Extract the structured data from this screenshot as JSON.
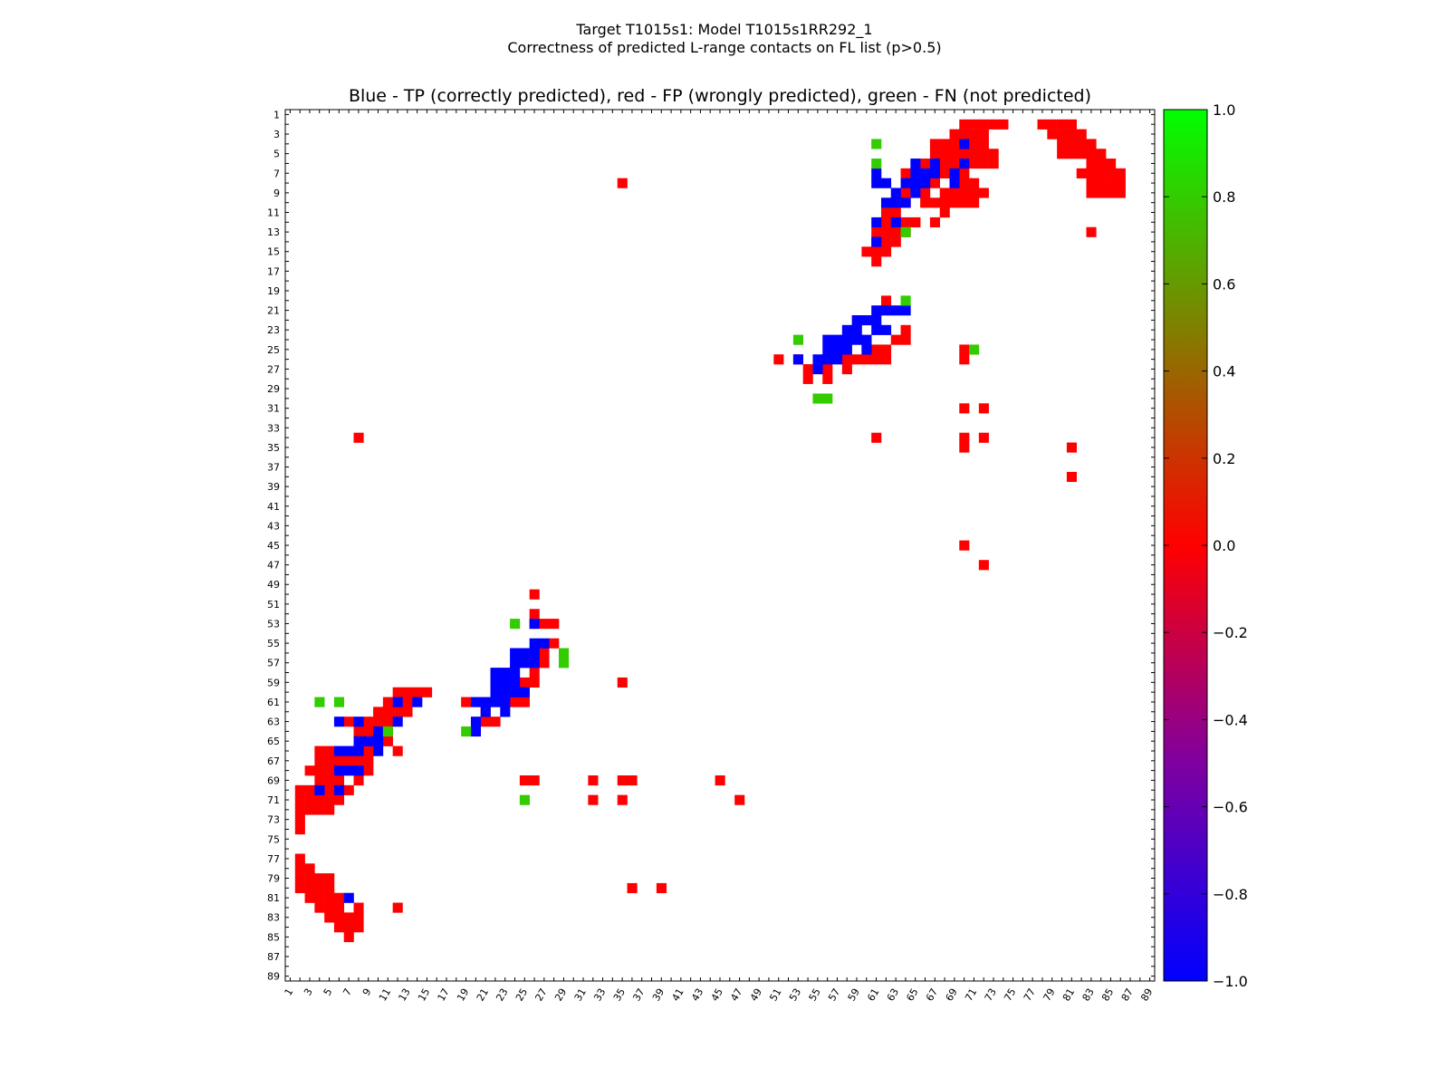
{
  "figure": {
    "suptitle_line1": "Target T1015s1: Model T1015s1RR292_1",
    "suptitle_line2": "Correctness of predicted L-range contacts on FL list (p>0.5)"
  },
  "colors": {
    "tp": "#0000ff",
    "fp": "#ff0000",
    "fn": "#33cc00",
    "colormap_stops": [
      "#0000ff",
      "#7f00a0",
      "#ff0000",
      "#808000",
      "#00ff00"
    ]
  },
  "chart_data": {
    "type": "heatmap",
    "title": "Blue - TP (correctly predicted), red - FP (wrongly predicted), green - FN (not predicted)",
    "xlabel": "",
    "ylabel": "",
    "xlim": [
      1,
      89
    ],
    "ylim": [
      1,
      89
    ],
    "x_ticks": [
      "1",
      "3",
      "5",
      "7",
      "9",
      "11",
      "13",
      "15",
      "17",
      "19",
      "21",
      "23",
      "25",
      "27",
      "29",
      "31",
      "33",
      "35",
      "37",
      "39",
      "41",
      "43",
      "45",
      "47",
      "49",
      "51",
      "53",
      "55",
      "57",
      "59",
      "61",
      "63",
      "65",
      "67",
      "69",
      "71",
      "73",
      "75",
      "77",
      "79",
      "81",
      "83",
      "85",
      "87",
      "89"
    ],
    "y_ticks": [
      "1",
      "3",
      "5",
      "7",
      "9",
      "11",
      "13",
      "15",
      "17",
      "19",
      "21",
      "23",
      "25",
      "27",
      "29",
      "31",
      "33",
      "35",
      "37",
      "39",
      "41",
      "43",
      "45",
      "47",
      "49",
      "51",
      "53",
      "55",
      "57",
      "59",
      "61",
      "63",
      "65",
      "67",
      "69",
      "71",
      "73",
      "75",
      "77",
      "79",
      "81",
      "83",
      "85",
      "87",
      "89"
    ],
    "value_legend": {
      "tp": -1,
      "fp": 0,
      "fn": 1
    },
    "colorbar": {
      "min": -1.0,
      "max": 1.0,
      "ticks": [
        "1.0",
        "0.8",
        "0.6",
        "0.4",
        "0.2",
        "0.0",
        "−0.2",
        "−0.4",
        "−0.6",
        "−0.8",
        "−1.0"
      ]
    },
    "cells": {
      "tp": [
        [
          70,
          4
        ],
        [
          65,
          6
        ],
        [
          67,
          6
        ],
        [
          70,
          6
        ],
        [
          61,
          7
        ],
        [
          65,
          7
        ],
        [
          66,
          7
        ],
        [
          67,
          7
        ],
        [
          69,
          7
        ],
        [
          61,
          8
        ],
        [
          62,
          8
        ],
        [
          64,
          8
        ],
        [
          65,
          8
        ],
        [
          66,
          8
        ],
        [
          69,
          8
        ],
        [
          63,
          9
        ],
        [
          65,
          9
        ],
        [
          62,
          10
        ],
        [
          63,
          10
        ],
        [
          64,
          10
        ],
        [
          61,
          12
        ],
        [
          63,
          12
        ],
        [
          61,
          14
        ],
        [
          61,
          21
        ],
        [
          62,
          21
        ],
        [
          63,
          21
        ],
        [
          64,
          21
        ],
        [
          59,
          22
        ],
        [
          60,
          22
        ],
        [
          61,
          22
        ],
        [
          58,
          23
        ],
        [
          59,
          23
        ],
        [
          61,
          23
        ],
        [
          62,
          23
        ],
        [
          56,
          24
        ],
        [
          57,
          24
        ],
        [
          58,
          24
        ],
        [
          59,
          24
        ],
        [
          60,
          24
        ],
        [
          56,
          25
        ],
        [
          57,
          25
        ],
        [
          58,
          25
        ],
        [
          60,
          25
        ],
        [
          53,
          26
        ],
        [
          55,
          26
        ],
        [
          56,
          26
        ],
        [
          57,
          26
        ],
        [
          55,
          27
        ],
        [
          26,
          53
        ],
        [
          26,
          55
        ],
        [
          27,
          55
        ],
        [
          24,
          56
        ],
        [
          25,
          56
        ],
        [
          26,
          56
        ],
        [
          24,
          57
        ],
        [
          25,
          57
        ],
        [
          26,
          57
        ],
        [
          22,
          58
        ],
        [
          23,
          58
        ],
        [
          24,
          58
        ],
        [
          22,
          59
        ],
        [
          23,
          59
        ],
        [
          24,
          59
        ],
        [
          22,
          60
        ],
        [
          23,
          60
        ],
        [
          24,
          60
        ],
        [
          25,
          60
        ],
        [
          12,
          61
        ],
        [
          14,
          61
        ],
        [
          20,
          61
        ],
        [
          21,
          61
        ],
        [
          22,
          61
        ],
        [
          23,
          61
        ],
        [
          21,
          62
        ],
        [
          23,
          62
        ],
        [
          6,
          63
        ],
        [
          8,
          63
        ],
        [
          12,
          63
        ],
        [
          20,
          63
        ],
        [
          10,
          64
        ],
        [
          20,
          64
        ],
        [
          8,
          65
        ],
        [
          9,
          65
        ],
        [
          10,
          65
        ],
        [
          6,
          66
        ],
        [
          7,
          66
        ],
        [
          8,
          66
        ],
        [
          10,
          66
        ],
        [
          6,
          68
        ],
        [
          7,
          68
        ],
        [
          8,
          68
        ],
        [
          4,
          70
        ],
        [
          6,
          70
        ],
        [
          7,
          81
        ]
      ],
      "fp": [
        [
          70,
          2
        ],
        [
          71,
          2
        ],
        [
          72,
          2
        ],
        [
          73,
          2
        ],
        [
          74,
          2
        ],
        [
          78,
          2
        ],
        [
          79,
          2
        ],
        [
          80,
          2
        ],
        [
          81,
          2
        ],
        [
          69,
          3
        ],
        [
          70,
          3
        ],
        [
          71,
          3
        ],
        [
          72,
          3
        ],
        [
          79,
          3
        ],
        [
          80,
          3
        ],
        [
          81,
          3
        ],
        [
          82,
          3
        ],
        [
          67,
          4
        ],
        [
          68,
          4
        ],
        [
          69,
          4
        ],
        [
          71,
          4
        ],
        [
          72,
          4
        ],
        [
          80,
          4
        ],
        [
          81,
          4
        ],
        [
          82,
          4
        ],
        [
          83,
          4
        ],
        [
          67,
          5
        ],
        [
          68,
          5
        ],
        [
          69,
          5
        ],
        [
          70,
          5
        ],
        [
          71,
          5
        ],
        [
          72,
          5
        ],
        [
          73,
          5
        ],
        [
          80,
          5
        ],
        [
          81,
          5
        ],
        [
          82,
          5
        ],
        [
          83,
          5
        ],
        [
          84,
          5
        ],
        [
          66,
          6
        ],
        [
          68,
          6
        ],
        [
          69,
          6
        ],
        [
          71,
          6
        ],
        [
          72,
          6
        ],
        [
          73,
          6
        ],
        [
          83,
          6
        ],
        [
          84,
          6
        ],
        [
          85,
          6
        ],
        [
          64,
          7
        ],
        [
          68,
          7
        ],
        [
          70,
          7
        ],
        [
          82,
          7
        ],
        [
          83,
          7
        ],
        [
          84,
          7
        ],
        [
          85,
          7
        ],
        [
          86,
          7
        ],
        [
          35,
          8
        ],
        [
          67,
          8
        ],
        [
          70,
          8
        ],
        [
          71,
          8
        ],
        [
          83,
          8
        ],
        [
          84,
          8
        ],
        [
          85,
          8
        ],
        [
          86,
          8
        ],
        [
          64,
          9
        ],
        [
          66,
          9
        ],
        [
          68,
          9
        ],
        [
          69,
          9
        ],
        [
          70,
          9
        ],
        [
          71,
          9
        ],
        [
          72,
          9
        ],
        [
          83,
          9
        ],
        [
          84,
          9
        ],
        [
          85,
          9
        ],
        [
          86,
          9
        ],
        [
          63,
          10
        ],
        [
          64,
          10
        ],
        [
          66,
          10
        ],
        [
          67,
          10
        ],
        [
          68,
          10
        ],
        [
          69,
          10
        ],
        [
          70,
          10
        ],
        [
          71,
          10
        ],
        [
          62,
          11
        ],
        [
          63,
          11
        ],
        [
          68,
          11
        ],
        [
          62,
          12
        ],
        [
          63,
          12
        ],
        [
          64,
          12
        ],
        [
          65,
          12
        ],
        [
          67,
          12
        ],
        [
          61,
          13
        ],
        [
          62,
          13
        ],
        [
          63,
          13
        ],
        [
          64,
          13
        ],
        [
          83,
          13
        ],
        [
          61,
          14
        ],
        [
          62,
          14
        ],
        [
          63,
          14
        ],
        [
          60,
          15
        ],
        [
          61,
          15
        ],
        [
          62,
          15
        ],
        [
          61,
          16
        ],
        [
          62,
          20
        ],
        [
          59,
          23
        ],
        [
          64,
          23
        ],
        [
          63,
          24
        ],
        [
          64,
          24
        ],
        [
          60,
          25
        ],
        [
          61,
          25
        ],
        [
          62,
          25
        ],
        [
          70,
          25
        ],
        [
          51,
          26
        ],
        [
          53,
          26
        ],
        [
          58,
          26
        ],
        [
          59,
          26
        ],
        [
          60,
          26
        ],
        [
          61,
          26
        ],
        [
          62,
          26
        ],
        [
          70,
          26
        ],
        [
          54,
          27
        ],
        [
          56,
          27
        ],
        [
          58,
          27
        ],
        [
          54,
          28
        ],
        [
          56,
          28
        ],
        [
          70,
          31
        ],
        [
          72,
          31
        ],
        [
          61,
          34
        ],
        [
          70,
          34
        ],
        [
          72,
          34
        ],
        [
          8,
          34
        ],
        [
          70,
          35
        ],
        [
          81,
          35
        ],
        [
          81,
          38
        ],
        [
          70,
          45
        ],
        [
          72,
          47
        ],
        [
          26,
          50
        ],
        [
          26,
          52
        ],
        [
          26,
          53
        ],
        [
          27,
          53
        ],
        [
          28,
          53
        ],
        [
          28,
          55
        ],
        [
          27,
          56
        ],
        [
          27,
          57
        ],
        [
          26,
          58
        ],
        [
          26,
          59
        ],
        [
          25,
          59
        ],
        [
          35,
          59
        ],
        [
          12,
          60
        ],
        [
          13,
          60
        ],
        [
          14,
          60
        ],
        [
          15,
          60
        ],
        [
          11,
          61
        ],
        [
          13,
          61
        ],
        [
          19,
          61
        ],
        [
          23,
          61
        ],
        [
          24,
          61
        ],
        [
          25,
          61
        ],
        [
          10,
          62
        ],
        [
          11,
          62
        ],
        [
          12,
          62
        ],
        [
          13,
          62
        ],
        [
          21,
          62
        ],
        [
          7,
          63
        ],
        [
          9,
          63
        ],
        [
          10,
          63
        ],
        [
          11,
          63
        ],
        [
          21,
          63
        ],
        [
          22,
          63
        ],
        [
          8,
          64
        ],
        [
          9,
          64
        ],
        [
          11,
          64
        ],
        [
          11,
          65
        ],
        [
          4,
          66
        ],
        [
          5,
          66
        ],
        [
          9,
          66
        ],
        [
          12,
          66
        ],
        [
          4,
          67
        ],
        [
          5,
          67
        ],
        [
          6,
          67
        ],
        [
          7,
          67
        ],
        [
          8,
          67
        ],
        [
          9,
          67
        ],
        [
          3,
          68
        ],
        [
          4,
          68
        ],
        [
          5,
          68
        ],
        [
          9,
          68
        ],
        [
          4,
          69
        ],
        [
          5,
          69
        ],
        [
          6,
          69
        ],
        [
          8,
          69
        ],
        [
          25,
          69
        ],
        [
          26,
          69
        ],
        [
          32,
          69
        ],
        [
          35,
          69
        ],
        [
          36,
          69
        ],
        [
          45,
          69
        ],
        [
          2,
          70
        ],
        [
          3,
          70
        ],
        [
          5,
          70
        ],
        [
          7,
          70
        ],
        [
          2,
          71
        ],
        [
          3,
          71
        ],
        [
          4,
          71
        ],
        [
          5,
          71
        ],
        [
          6,
          71
        ],
        [
          32,
          71
        ],
        [
          35,
          71
        ],
        [
          47,
          71
        ],
        [
          2,
          72
        ],
        [
          3,
          72
        ],
        [
          4,
          72
        ],
        [
          5,
          72
        ],
        [
          2,
          73
        ],
        [
          2,
          74
        ],
        [
          2,
          77
        ],
        [
          2,
          78
        ],
        [
          3,
          78
        ],
        [
          2,
          79
        ],
        [
          3,
          79
        ],
        [
          4,
          79
        ],
        [
          5,
          79
        ],
        [
          2,
          80
        ],
        [
          3,
          80
        ],
        [
          4,
          80
        ],
        [
          5,
          80
        ],
        [
          36,
          80
        ],
        [
          39,
          80
        ],
        [
          3,
          81
        ],
        [
          4,
          81
        ],
        [
          5,
          81
        ],
        [
          6,
          81
        ],
        [
          4,
          82
        ],
        [
          5,
          82
        ],
        [
          6,
          82
        ],
        [
          8,
          82
        ],
        [
          12,
          82
        ],
        [
          5,
          83
        ],
        [
          6,
          83
        ],
        [
          7,
          83
        ],
        [
          8,
          83
        ],
        [
          6,
          84
        ],
        [
          7,
          84
        ],
        [
          8,
          84
        ],
        [
          7,
          85
        ]
      ],
      "fn": [
        [
          61,
          4
        ],
        [
          61,
          6
        ],
        [
          64,
          13
        ],
        [
          64,
          20
        ],
        [
          53,
          24
        ],
        [
          71,
          25
        ],
        [
          55,
          30
        ],
        [
          56,
          30
        ],
        [
          24,
          53
        ],
        [
          29,
          56
        ],
        [
          29,
          57
        ],
        [
          4,
          61
        ],
        [
          6,
          61
        ],
        [
          11,
          64
        ],
        [
          19,
          64
        ],
        [
          25,
          71
        ]
      ]
    }
  }
}
